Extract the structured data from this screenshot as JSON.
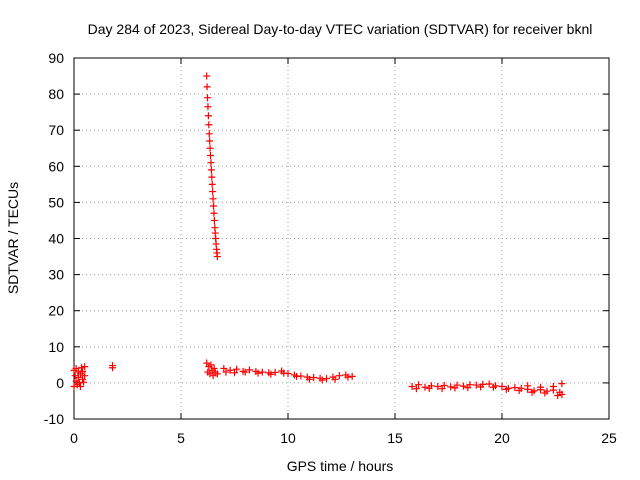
{
  "chart_data": {
    "type": "scatter",
    "title": "Day 284 of 2023, Sidereal Day-to-day VTEC variation (SDTVAR) for receiver bknl",
    "xlabel": "GPS time / hours",
    "ylabel": "SDTVAR / TECUs",
    "xlim": [
      0,
      25
    ],
    "ylim": [
      -10,
      90
    ],
    "x_ticks": [
      0,
      5,
      10,
      15,
      20,
      25
    ],
    "y_ticks": [
      -10,
      0,
      10,
      20,
      30,
      40,
      50,
      60,
      70,
      80,
      90
    ],
    "grid": true,
    "marker": "+",
    "color": "#ff0000",
    "series": [
      {
        "name": "SDTVAR",
        "points": [
          [
            0.0,
            3.5
          ],
          [
            0.0,
            -1.0
          ],
          [
            0.05,
            2.0
          ],
          [
            0.1,
            0.5
          ],
          [
            0.1,
            4.0
          ],
          [
            0.15,
            -0.5
          ],
          [
            0.2,
            3.0
          ],
          [
            0.2,
            1.5
          ],
          [
            0.25,
            0.0
          ],
          [
            0.3,
            2.5
          ],
          [
            0.3,
            -1.0
          ],
          [
            0.35,
            4.2
          ],
          [
            0.4,
            1.0
          ],
          [
            0.4,
            3.2
          ],
          [
            0.45,
            0.2
          ],
          [
            0.5,
            2.0
          ],
          [
            0.5,
            4.5
          ],
          [
            1.8,
            4.8
          ],
          [
            1.8,
            4.2
          ],
          [
            6.2,
            85.0
          ],
          [
            6.22,
            82.0
          ],
          [
            6.24,
            79.0
          ],
          [
            6.26,
            76.5
          ],
          [
            6.28,
            74.0
          ],
          [
            6.3,
            71.5
          ],
          [
            6.32,
            69.0
          ],
          [
            6.34,
            67.0
          ],
          [
            6.36,
            65.0
          ],
          [
            6.38,
            63.0
          ],
          [
            6.4,
            61.0
          ],
          [
            6.42,
            59.0
          ],
          [
            6.44,
            57.0
          ],
          [
            6.46,
            55.0
          ],
          [
            6.48,
            53.0
          ],
          [
            6.5,
            51.0
          ],
          [
            6.52,
            49.0
          ],
          [
            6.54,
            47.0
          ],
          [
            6.56,
            45.0
          ],
          [
            6.58,
            43.0
          ],
          [
            6.6,
            41.5
          ],
          [
            6.62,
            40.0
          ],
          [
            6.64,
            38.5
          ],
          [
            6.66,
            37.0
          ],
          [
            6.68,
            36.0
          ],
          [
            6.7,
            35.0
          ],
          [
            6.2,
            5.5
          ],
          [
            6.25,
            3.0
          ],
          [
            6.3,
            4.5
          ],
          [
            6.35,
            2.5
          ],
          [
            6.4,
            5.0
          ],
          [
            6.45,
            3.5
          ],
          [
            6.5,
            2.0
          ],
          [
            6.55,
            4.0
          ],
          [
            6.6,
            3.0
          ],
          [
            6.7,
            2.5
          ],
          [
            7.0,
            4.0
          ],
          [
            7.3,
            3.5
          ],
          [
            7.6,
            3.8
          ],
          [
            7.9,
            3.2
          ],
          [
            8.2,
            3.6
          ],
          [
            8.5,
            3.2
          ],
          [
            8.8,
            3.0
          ],
          [
            9.1,
            2.8
          ],
          [
            9.4,
            2.9
          ],
          [
            9.7,
            3.3
          ],
          [
            10.0,
            2.6
          ],
          [
            10.3,
            2.2
          ],
          [
            10.6,
            1.9
          ],
          [
            10.9,
            1.6
          ],
          [
            11.2,
            1.5
          ],
          [
            11.5,
            1.3
          ],
          [
            11.8,
            1.2
          ],
          [
            12.1,
            1.6
          ],
          [
            12.4,
            2.0
          ],
          [
            12.7,
            2.2
          ],
          [
            13.0,
            1.8
          ],
          [
            7.1,
            3.0
          ],
          [
            7.5,
            2.8
          ],
          [
            8.0,
            3.0
          ],
          [
            8.6,
            2.7
          ],
          [
            9.2,
            2.4
          ],
          [
            9.8,
            2.7
          ],
          [
            10.4,
            1.8
          ],
          [
            11.0,
            1.0
          ],
          [
            11.6,
            0.8
          ],
          [
            12.2,
            1.0
          ],
          [
            12.8,
            1.6
          ],
          [
            15.8,
            -1.0
          ],
          [
            16.1,
            -0.5
          ],
          [
            16.4,
            -1.2
          ],
          [
            16.7,
            -0.8
          ],
          [
            17.0,
            -1.0
          ],
          [
            17.3,
            -0.7
          ],
          [
            17.6,
            -1.1
          ],
          [
            17.9,
            -0.6
          ],
          [
            18.2,
            -0.9
          ],
          [
            18.5,
            -0.5
          ],
          [
            18.8,
            -0.6
          ],
          [
            19.1,
            -0.4
          ],
          [
            19.4,
            -0.3
          ],
          [
            19.7,
            -0.8
          ],
          [
            20.0,
            -1.0
          ],
          [
            20.3,
            -1.5
          ],
          [
            20.6,
            -1.3
          ],
          [
            20.9,
            -1.5
          ],
          [
            21.2,
            -1.8
          ],
          [
            21.5,
            -2.2
          ],
          [
            21.8,
            -1.9
          ],
          [
            22.1,
            -2.3
          ],
          [
            22.4,
            -2.0
          ],
          [
            22.7,
            -2.6
          ],
          [
            22.8,
            -3.2
          ],
          [
            16.0,
            -1.6
          ],
          [
            16.6,
            -1.5
          ],
          [
            17.2,
            -1.6
          ],
          [
            17.8,
            -1.4
          ],
          [
            18.4,
            -1.3
          ],
          [
            19.0,
            -1.1
          ],
          [
            19.6,
            -1.2
          ],
          [
            20.2,
            -1.8
          ],
          [
            20.8,
            -2.1
          ],
          [
            21.4,
            -2.6
          ],
          [
            22.0,
            -2.8
          ],
          [
            22.6,
            -3.5
          ],
          [
            21.2,
            -0.8
          ],
          [
            21.8,
            -1.2
          ],
          [
            22.4,
            -1.0
          ],
          [
            22.8,
            -0.2
          ]
        ]
      }
    ]
  }
}
